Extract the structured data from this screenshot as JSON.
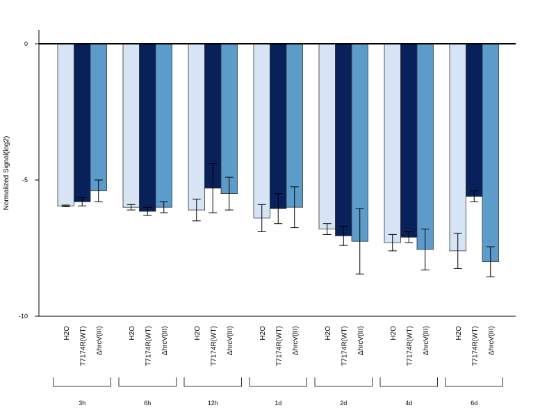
{
  "chart_data": {
    "type": "bar",
    "title": "",
    "ylabel": "Normalized Signal(log2)",
    "xlabel": "",
    "ylim": [
      -10,
      0.5
    ],
    "yticks": [
      "0",
      "-5",
      "-10"
    ],
    "treatments": [
      "H2O",
      "T7174R(WT)",
      "ΔhrcV(III)"
    ],
    "groups": [
      "3h",
      "6h",
      "12h",
      "1d",
      "2d",
      "4d",
      "6d"
    ],
    "colors": [
      "#d6e4f5",
      "#08215a",
      "#5b9ccb"
    ],
    "series": [
      {
        "values": [
          -5.95,
          -6.0,
          -6.1,
          -6.4,
          -6.8,
          -7.3,
          -7.6
        ],
        "errors": [
          0.03,
          0.1,
          0.4,
          0.5,
          0.2,
          0.3,
          0.65
        ]
      },
      {
        "values": [
          -5.8,
          -6.15,
          -5.3,
          -6.05,
          -7.05,
          -7.1,
          -5.6
        ],
        "errors": [
          0.15,
          0.15,
          0.9,
          0.55,
          0.35,
          0.2,
          0.2
        ]
      },
      {
        "values": [
          -5.4,
          -6.0,
          -5.5,
          -6.0,
          -7.25,
          -7.55,
          -8.0
        ],
        "errors": [
          0.4,
          0.2,
          0.6,
          0.75,
          1.2,
          0.75,
          0.55
        ]
      }
    ]
  }
}
